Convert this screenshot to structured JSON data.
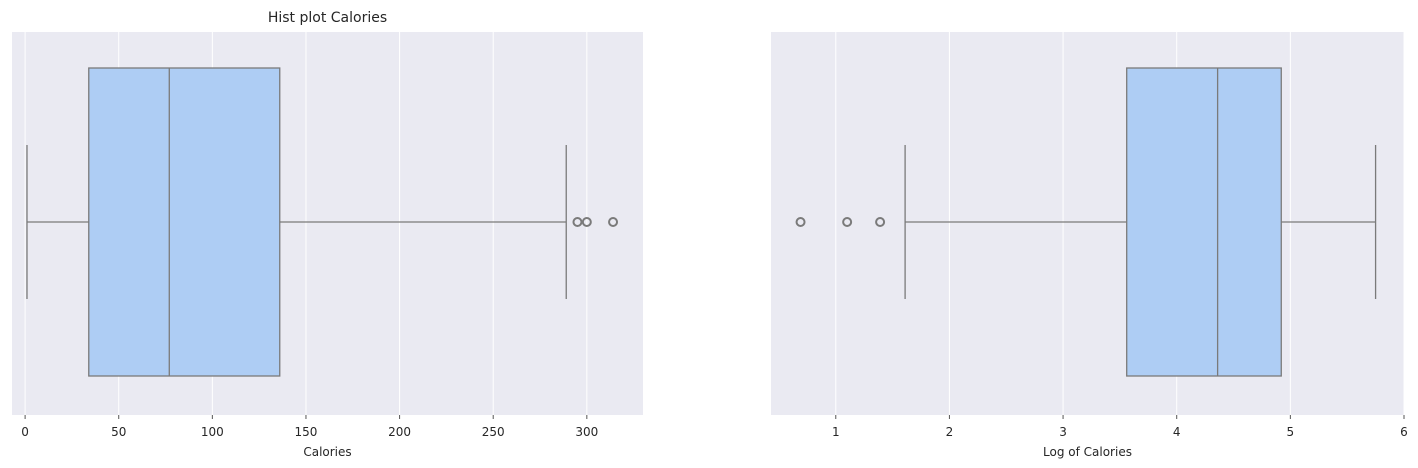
{
  "chart_data": [
    {
      "type": "box",
      "title": "Hist plot Calories",
      "xlabel": "Calories",
      "ylabel": "",
      "xlim": [
        -7,
        330
      ],
      "xticks": [
        0,
        50,
        100,
        150,
        200,
        250,
        300
      ],
      "grid": true,
      "colors": {
        "background": "#eaeaf2",
        "box_fill": "#aecdf4",
        "line": "#7a7a7a",
        "grid": "#ffffff"
      },
      "box": {
        "whisker_low": 1,
        "q1": 34,
        "median": 77,
        "q3": 136,
        "whisker_high": 289
      },
      "outliers": [
        295,
        300,
        314
      ]
    },
    {
      "type": "box",
      "title": "",
      "xlabel": "Log of Calories",
      "ylabel": "",
      "xlim": [
        0.43,
        6.0
      ],
      "xticks": [
        1,
        2,
        3,
        4,
        5,
        6
      ],
      "grid": true,
      "colors": {
        "background": "#eaeaf2",
        "box_fill": "#aecdf4",
        "line": "#7a7a7a",
        "grid": "#ffffff"
      },
      "box": {
        "whisker_low": 1.61,
        "q1": 3.56,
        "median": 4.36,
        "q3": 4.92,
        "whisker_high": 5.75
      },
      "outliers": [
        0.69,
        1.1,
        1.39
      ]
    }
  ]
}
